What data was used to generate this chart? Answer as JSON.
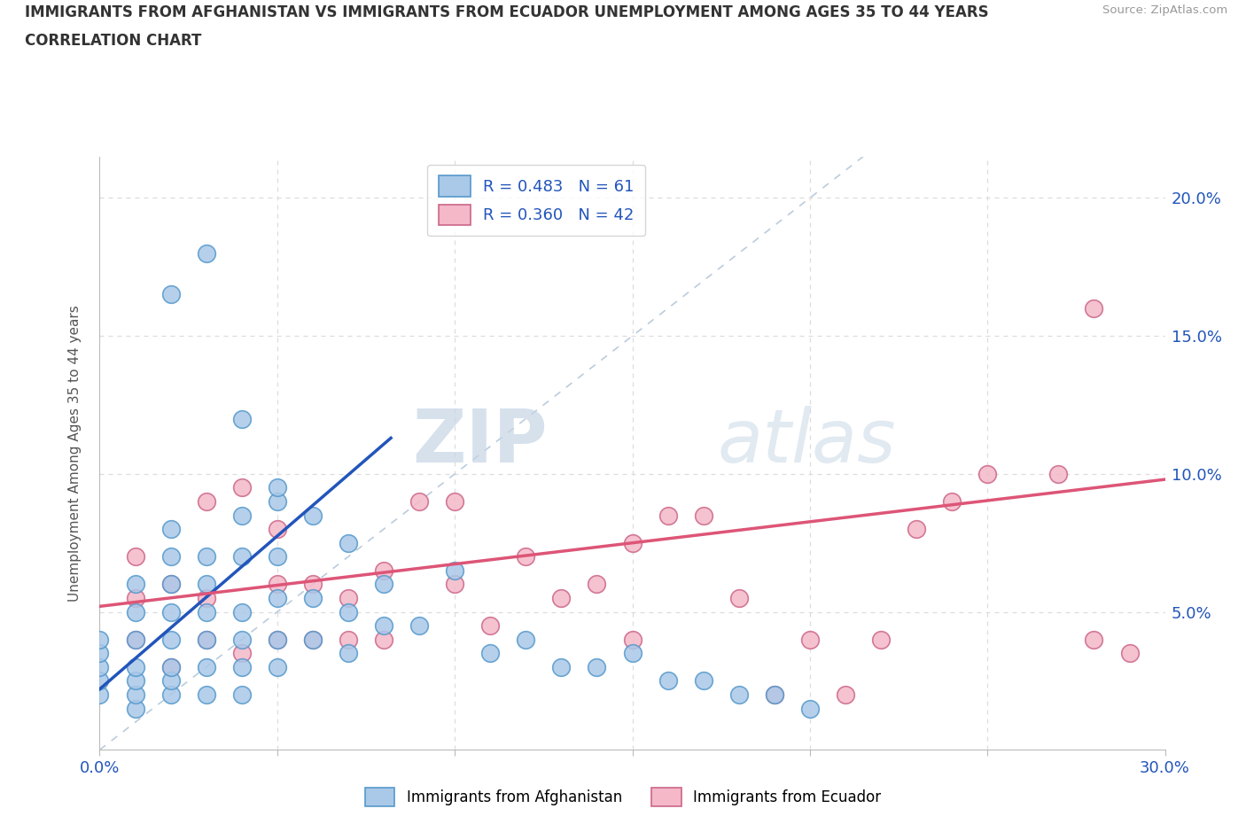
{
  "title_line1": "IMMIGRANTS FROM AFGHANISTAN VS IMMIGRANTS FROM ECUADOR UNEMPLOYMENT AMONG AGES 35 TO 44 YEARS",
  "title_line2": "CORRELATION CHART",
  "source": "Source: ZipAtlas.com",
  "ylabel": "Unemployment Among Ages 35 to 44 years",
  "xlim": [
    0.0,
    0.3
  ],
  "ylim": [
    0.0,
    0.215
  ],
  "xticks": [
    0.0,
    0.05,
    0.1,
    0.15,
    0.2,
    0.25,
    0.3
  ],
  "xtick_labels": [
    "0.0%",
    "",
    "",
    "",
    "",
    "",
    "30.0%"
  ],
  "yticks": [
    0.0,
    0.05,
    0.1,
    0.15,
    0.2
  ],
  "ytick_labels": [
    "",
    "5.0%",
    "10.0%",
    "15.0%",
    "20.0%"
  ],
  "afghanistan_color": "#aac8e8",
  "afghanistan_edge": "#5599cc",
  "ecuador_color": "#f4b8c8",
  "ecuador_edge": "#cc6688",
  "afghanistan_R": 0.483,
  "afghanistan_N": 61,
  "ecuador_R": 0.36,
  "ecuador_N": 42,
  "legend_R_color": "#2255bb",
  "watermark_zip": "ZIP",
  "watermark_atlas": "atlas",
  "afg_line_color": "#2255bb",
  "ecu_line_color": "#dd5577",
  "diag_line_color": "#bbccdd",
  "background_color": "#ffffff",
  "grid_color": "#dddddd",
  "afg_line_x": [
    0.0,
    0.082
  ],
  "afg_line_y": [
    0.022,
    0.113
  ],
  "ecu_line_x": [
    0.0,
    0.3
  ],
  "ecu_line_y": [
    0.052,
    0.098
  ],
  "afghanistan_scatter_x": [
    0.0,
    0.0,
    0.0,
    0.0,
    0.0,
    0.01,
    0.01,
    0.01,
    0.01,
    0.01,
    0.01,
    0.01,
    0.02,
    0.02,
    0.02,
    0.02,
    0.02,
    0.02,
    0.02,
    0.02,
    0.03,
    0.03,
    0.03,
    0.03,
    0.03,
    0.03,
    0.04,
    0.04,
    0.04,
    0.04,
    0.04,
    0.04,
    0.05,
    0.05,
    0.05,
    0.05,
    0.05,
    0.06,
    0.06,
    0.06,
    0.07,
    0.07,
    0.07,
    0.08,
    0.08,
    0.09,
    0.1,
    0.11,
    0.12,
    0.13,
    0.14,
    0.15,
    0.16,
    0.17,
    0.18,
    0.19,
    0.2,
    0.02,
    0.03,
    0.04,
    0.05
  ],
  "afghanistan_scatter_y": [
    0.02,
    0.025,
    0.03,
    0.035,
    0.04,
    0.015,
    0.02,
    0.025,
    0.03,
    0.04,
    0.05,
    0.06,
    0.02,
    0.025,
    0.03,
    0.04,
    0.05,
    0.06,
    0.07,
    0.08,
    0.02,
    0.03,
    0.04,
    0.05,
    0.06,
    0.07,
    0.02,
    0.03,
    0.04,
    0.05,
    0.07,
    0.085,
    0.03,
    0.04,
    0.055,
    0.07,
    0.09,
    0.04,
    0.055,
    0.085,
    0.035,
    0.05,
    0.075,
    0.045,
    0.06,
    0.045,
    0.065,
    0.035,
    0.04,
    0.03,
    0.03,
    0.035,
    0.025,
    0.025,
    0.02,
    0.02,
    0.015,
    0.165,
    0.18,
    0.12,
    0.095
  ],
  "ecuador_scatter_x": [
    0.01,
    0.01,
    0.01,
    0.02,
    0.02,
    0.03,
    0.03,
    0.03,
    0.04,
    0.04,
    0.05,
    0.05,
    0.05,
    0.06,
    0.06,
    0.07,
    0.07,
    0.08,
    0.08,
    0.09,
    0.1,
    0.1,
    0.11,
    0.12,
    0.13,
    0.14,
    0.15,
    0.15,
    0.16,
    0.17,
    0.18,
    0.19,
    0.2,
    0.21,
    0.22,
    0.23,
    0.24,
    0.25,
    0.27,
    0.28,
    0.28,
    0.29
  ],
  "ecuador_scatter_y": [
    0.04,
    0.055,
    0.07,
    0.03,
    0.06,
    0.04,
    0.055,
    0.09,
    0.035,
    0.095,
    0.04,
    0.06,
    0.08,
    0.04,
    0.06,
    0.04,
    0.055,
    0.04,
    0.065,
    0.09,
    0.06,
    0.09,
    0.045,
    0.07,
    0.055,
    0.06,
    0.04,
    0.075,
    0.085,
    0.085,
    0.055,
    0.02,
    0.04,
    0.02,
    0.04,
    0.08,
    0.09,
    0.1,
    0.1,
    0.16,
    0.04,
    0.035
  ]
}
